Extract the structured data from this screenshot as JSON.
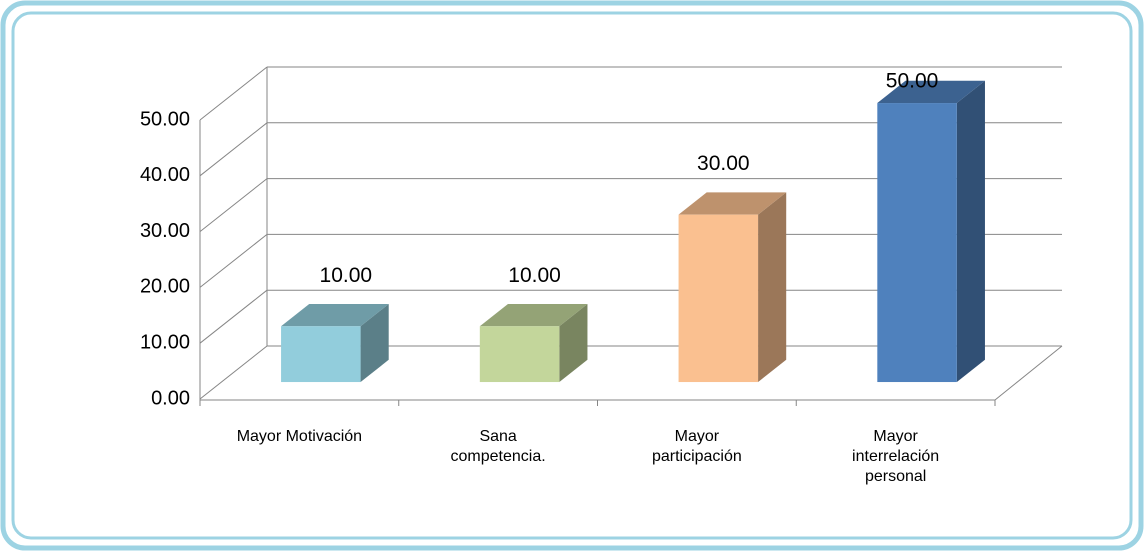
{
  "chart_data": {
    "type": "bar3d",
    "categories": [
      [
        "Mayor Motivación"
      ],
      [
        "Sana",
        "competencia."
      ],
      [
        "Mayor",
        "participación"
      ],
      [
        "Mayor",
        "interrelación",
        "personal"
      ]
    ],
    "values": [
      10,
      10,
      30,
      50
    ],
    "value_labels": [
      "10.00",
      "10.00",
      "30.00",
      "50.00"
    ],
    "colors": [
      "#92cddc",
      "#c3d69b",
      "#fac090",
      "#4f81bd"
    ],
    "ylim": [
      0,
      50
    ],
    "yticks": [
      {
        "value": 0,
        "label": "0.00"
      },
      {
        "value": 10,
        "label": "10.00"
      },
      {
        "value": 20,
        "label": "20.00"
      },
      {
        "value": 30,
        "label": "30.00"
      },
      {
        "value": 40,
        "label": "40.00"
      },
      {
        "value": 50,
        "label": "50.00"
      }
    ],
    "grid": true
  }
}
